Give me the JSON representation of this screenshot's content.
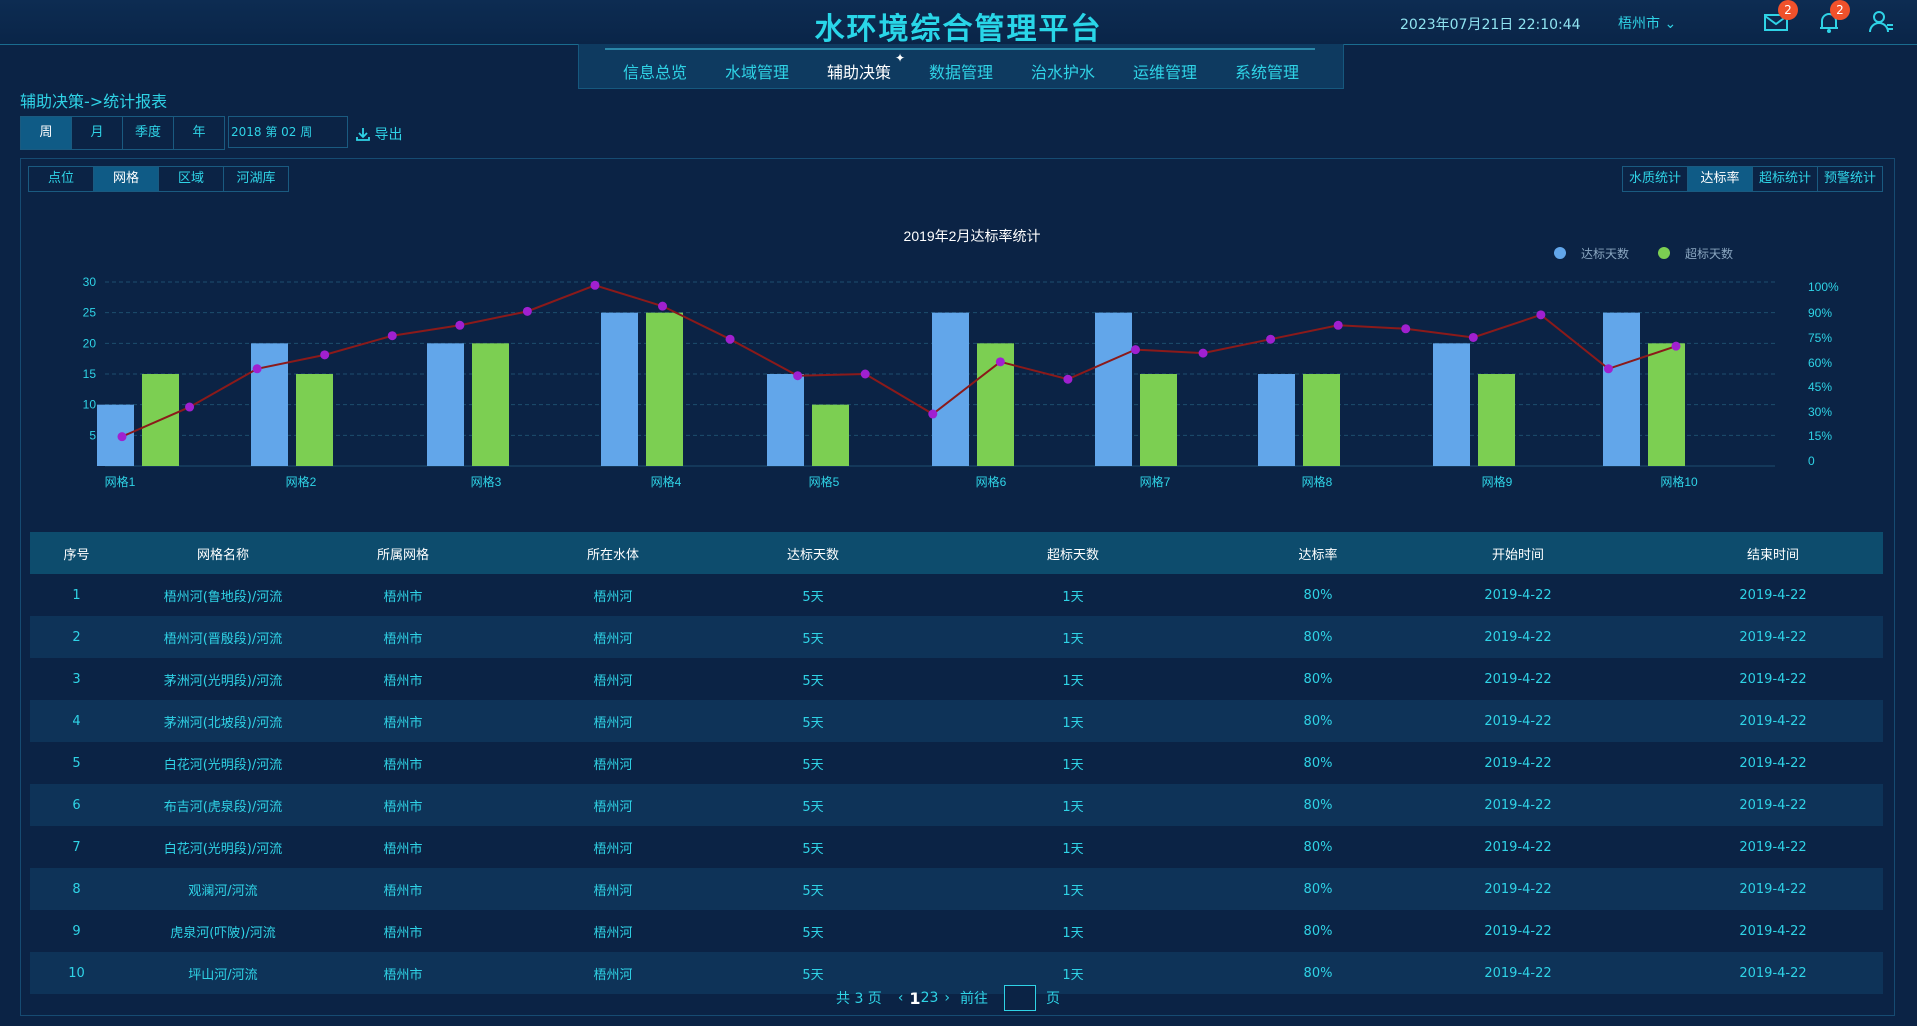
{
  "header": {
    "title": "水环境综合管理平台",
    "datetime": "2023年07月21日 22:10:44",
    "city": "梧州市",
    "mail_badge": "2",
    "bell_badge": "2"
  },
  "nav": {
    "items": [
      "信息总览",
      "水域管理",
      "辅助决策",
      "数据管理",
      "治水护水",
      "运维管理",
      "系统管理"
    ],
    "active": "辅助决策"
  },
  "breadcrumb": "辅助决策->统计报表",
  "period_tabs": [
    "周",
    "月",
    "季度",
    "年"
  ],
  "week_value": "2018 第 02 周",
  "export_label": "导出",
  "category_tabs": [
    "点位",
    "网格",
    "区域",
    "河湖库"
  ],
  "stat_tabs": [
    "水质统计",
    "达标率",
    "超标统计",
    "预警统计"
  ],
  "chart_data": {
    "type": "bar",
    "title": "2019年2月达标率统计",
    "categories": [
      "网格1",
      "网格2",
      "网格3",
      "网格4",
      "网格5",
      "网格6",
      "网格7",
      "网格8",
      "网格9",
      "网格10"
    ],
    "series": [
      {
        "name": "达标天数",
        "color": "#62a6ea",
        "values": [
          10,
          20,
          20,
          25,
          15,
          25,
          25,
          15,
          20,
          25
        ]
      },
      {
        "name": "超标天数",
        "color": "#7ccf52",
        "values": [
          15,
          15,
          20,
          25,
          10,
          20,
          15,
          15,
          15,
          20
        ]
      }
    ],
    "line": {
      "color": "#8b1a1a",
      "point_color": "#a020d0",
      "values_percent": [
        14,
        31,
        53,
        61,
        72,
        78,
        86,
        101,
        89,
        70,
        49,
        50,
        27,
        57,
        47,
        64,
        62,
        70,
        78,
        76,
        71,
        84,
        53,
        66
      ]
    },
    "ylim": [
      0,
      30
    ],
    "yticks": [
      "5",
      "10",
      "15",
      "20",
      "25",
      "30"
    ],
    "y2ticks": [
      "0",
      "15%",
      "30%",
      "45%",
      "60%",
      "75%",
      "90%",
      "100%"
    ],
    "legend_position": "top-right",
    "grid": true
  },
  "table": {
    "headers": [
      "序号",
      "网格名称",
      "所属网格",
      "所在水体",
      "达标天数",
      "超标天数",
      "达标率",
      "开始时间",
      "结束时间"
    ],
    "rows": [
      [
        "1",
        "梧州河(鲁地段)/河流",
        "梧州市",
        "梧州河",
        "5天",
        "1天",
        "80%",
        "2019-4-22",
        "2019-4-22"
      ],
      [
        "2",
        "梧州河(晋殷段)/河流",
        "梧州市",
        "梧州河",
        "5天",
        "1天",
        "80%",
        "2019-4-22",
        "2019-4-22"
      ],
      [
        "3",
        "茅洲河(光明段)/河流",
        "梧州市",
        "梧州河",
        "5天",
        "1天",
        "80%",
        "2019-4-22",
        "2019-4-22"
      ],
      [
        "4",
        "茅洲河(北坡段)/河流",
        "梧州市",
        "梧州河",
        "5天",
        "1天",
        "80%",
        "2019-4-22",
        "2019-4-22"
      ],
      [
        "5",
        "白花河(光明段)/河流",
        "梧州市",
        "梧州河",
        "5天",
        "1天",
        "80%",
        "2019-4-22",
        "2019-4-22"
      ],
      [
        "6",
        "布吉河(虎泉段)/河流",
        "梧州市",
        "梧州河",
        "5天",
        "1天",
        "80%",
        "2019-4-22",
        "2019-4-22"
      ],
      [
        "7",
        "白花河(光明段)/河流",
        "梧州市",
        "梧州河",
        "5天",
        "1天",
        "80%",
        "2019-4-22",
        "2019-4-22"
      ],
      [
        "8",
        "观澜河/河流",
        "梧州市",
        "梧州河",
        "5天",
        "1天",
        "80%",
        "2019-4-22",
        "2019-4-22"
      ],
      [
        "9",
        "虎泉河(吓陂)/河流",
        "梧州市",
        "梧州河",
        "5天",
        "1天",
        "80%",
        "2019-4-22",
        "2019-4-22"
      ],
      [
        "10",
        "坪山河/河流",
        "梧州市",
        "梧州河",
        "5天",
        "1天",
        "80%",
        "2019-4-22",
        "2019-4-22"
      ]
    ]
  },
  "pager": {
    "total": "共 3 页",
    "pages": [
      "1",
      "2",
      "3"
    ],
    "active_page": "1",
    "goto_prefix": "前往",
    "goto_suffix": "页"
  },
  "icons": {
    "mail": "mail-icon",
    "bell": "bell-icon",
    "user": "user-icon",
    "export": "download-icon"
  }
}
